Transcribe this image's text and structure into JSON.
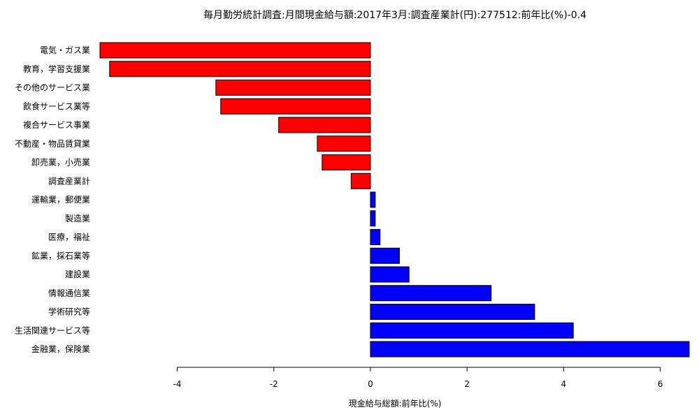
{
  "chart_data": {
    "type": "bar",
    "orientation": "horizontal",
    "title": "毎月勤労統計調査:月間現金給与額:2017年3月:調査産業計(円):277512:前年比(%)-0.4",
    "xlabel": "現金給与総額:前年比(%)",
    "ylabel": "",
    "xlim": [
      -5.6,
      6.6
    ],
    "xticks": [
      -4,
      -2,
      0,
      2,
      4,
      6
    ],
    "grid": false,
    "colors": {
      "negative": "#ff0000",
      "positive": "#0000ff"
    },
    "categories": [
      "電気・ガス業",
      "教育，学習支援業",
      "その他のサービス業",
      "飲食サービス業等",
      "複合サービス事業",
      "不動産・物品賃貸業",
      "卸売業，小売業",
      "調査産業計",
      "運輸業，郵便業",
      "製造業",
      "医療，福祉",
      "鉱業，採石業等",
      "建設業",
      "情報通信業",
      "学術研究等",
      "生活関連サービス等",
      "金融業，保険業"
    ],
    "values": [
      -5.6,
      -5.4,
      -3.2,
      -3.1,
      -1.9,
      -1.1,
      -1.0,
      -0.4,
      0.1,
      0.1,
      0.2,
      0.6,
      0.8,
      2.5,
      3.4,
      4.2,
      6.6
    ]
  }
}
